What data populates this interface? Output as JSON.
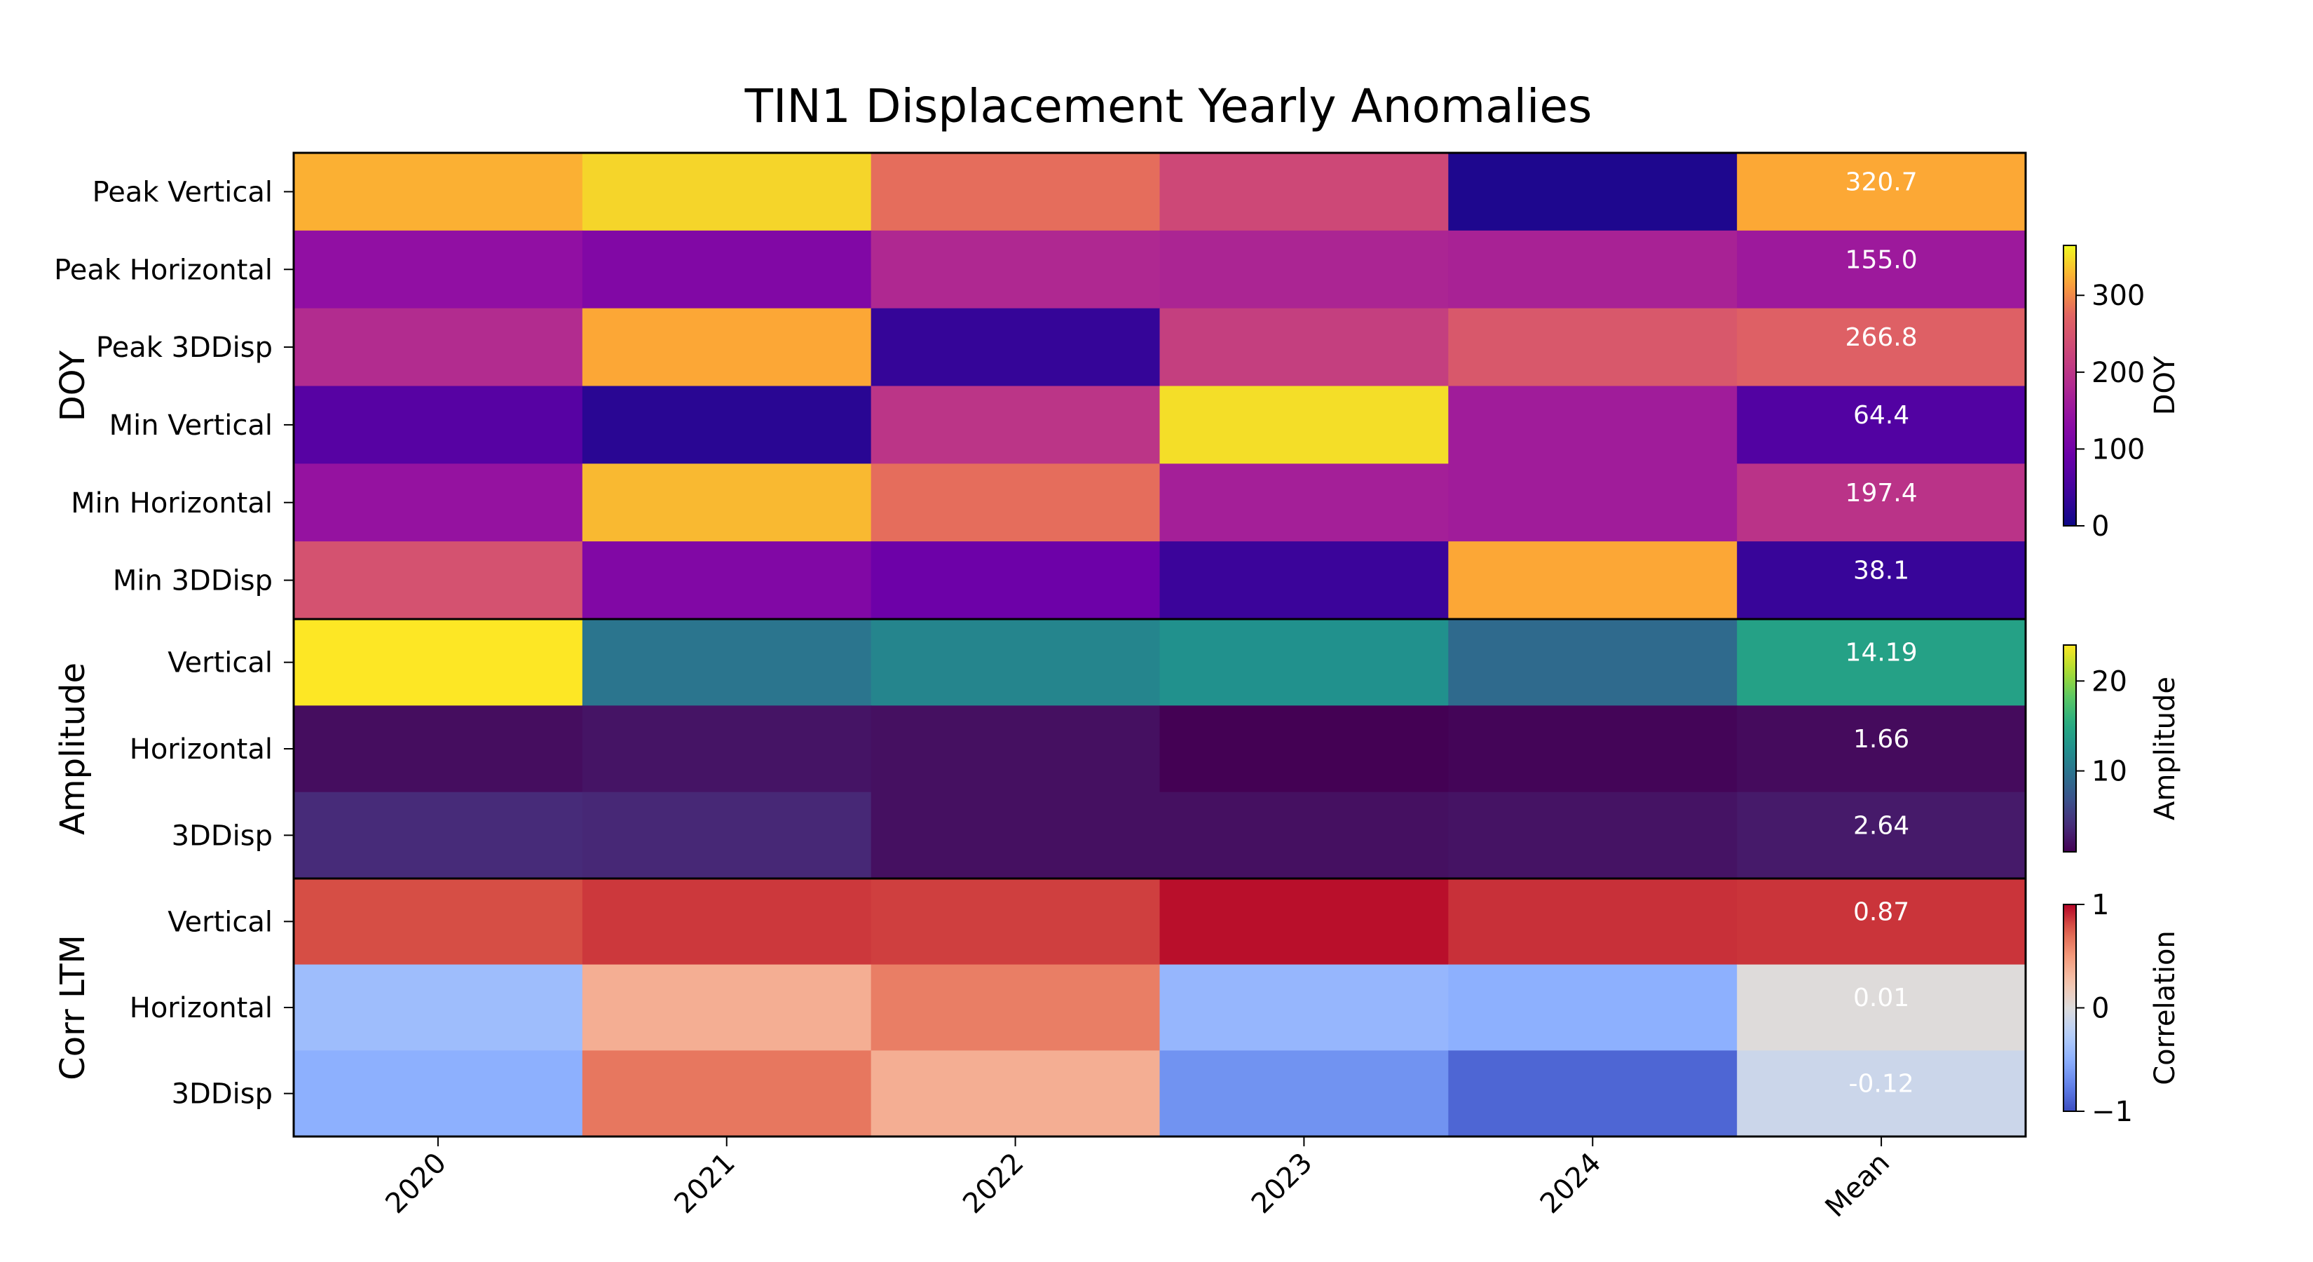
{
  "chart_data": {
    "type": "heatmap",
    "title": "TIN1 Displacement Yearly Anomalies",
    "columns": [
      "2020",
      "2021",
      "2022",
      "2023",
      "2024",
      "Mean"
    ],
    "groups": [
      {
        "name": "DOY",
        "colormap": "plasma",
        "colorbar": {
          "label": "DOY",
          "range": [
            0,
            365
          ],
          "ticks": [
            "0",
            "100",
            "200",
            "300"
          ],
          "tick_values": [
            0,
            100,
            200,
            300
          ]
        },
        "rows": [
          {
            "label": "Peak Vertical",
            "values": [
              325,
              345,
              280,
              230,
              15,
              320.7
            ]
          },
          {
            "label": "Peak Horizontal",
            "values": [
              140,
              120,
              180,
              175,
              170,
              155.0
            ]
          },
          {
            "label": "Peak 3DDisp",
            "values": [
              185,
              320,
              35,
              215,
              255,
              266.8
            ]
          },
          {
            "label": "Min Vertical",
            "values": [
              70,
              25,
              200,
              350,
              160,
              64.4
            ]
          },
          {
            "label": "Min Horizontal",
            "values": [
              145,
              330,
              280,
              165,
              160,
              197.4
            ]
          },
          {
            "label": "Min 3DDisp",
            "values": [
              245,
              120,
              95,
              40,
              320,
              38.1
            ]
          }
        ],
        "labels": [
          "",
          "",
          "",
          "",
          "",
          "320.7",
          "",
          "",
          "",
          "",
          "",
          "155.0",
          "",
          "",
          "",
          "",
          "",
          "266.8",
          "",
          "",
          "",
          "",
          "",
          "64.4",
          "",
          "",
          "",
          "",
          "",
          "197.4",
          "",
          "",
          "",
          "",
          "",
          "38.1"
        ]
      },
      {
        "name": "Amplitude",
        "colormap": "viridis",
        "colorbar": {
          "label": "Amplitude",
          "range": [
            1,
            24
          ],
          "ticks": [
            "10",
            "20"
          ],
          "tick_values": [
            10,
            20
          ]
        },
        "rows": [
          {
            "label": "Vertical",
            "values": [
              24.0,
              10.0,
              11.5,
              12.6,
              9.0,
              14.19
            ]
          },
          {
            "label": "Horizontal",
            "values": [
              1.8,
              2.3,
              2.0,
              1.0,
              1.3,
              1.66
            ]
          },
          {
            "label": "3DDisp",
            "values": [
              3.8,
              3.6,
              2.0,
              2.0,
              2.2,
              2.64
            ]
          }
        ]
      },
      {
        "name": "Corr LTM",
        "colormap": "coolwarm",
        "colorbar": {
          "label": "Correlation",
          "range": [
            -1,
            1
          ],
          "ticks": [
            "−1",
            "0",
            "1"
          ],
          "tick_values": [
            -1,
            0,
            1
          ]
        },
        "rows": [
          {
            "label": "Vertical",
            "values": [
              0.8,
              0.86,
              0.84,
              0.97,
              0.88,
              0.87
            ]
          },
          {
            "label": "Horizontal",
            "values": [
              -0.4,
              0.38,
              0.62,
              -0.45,
              -0.5,
              0.01
            ]
          },
          {
            "label": "3DDisp",
            "values": [
              -0.5,
              0.65,
              0.38,
              -0.66,
              -0.88,
              -0.12
            ]
          }
        ]
      }
    ],
    "value_labels_column": "Mean",
    "value_labels": [
      [
        "320.7",
        "155.0",
        "266.8",
        "64.4",
        "197.4",
        "38.1"
      ],
      [
        "14.19",
        "1.66",
        "2.64"
      ],
      [
        "0.87",
        "0.01",
        "-0.12"
      ]
    ]
  }
}
